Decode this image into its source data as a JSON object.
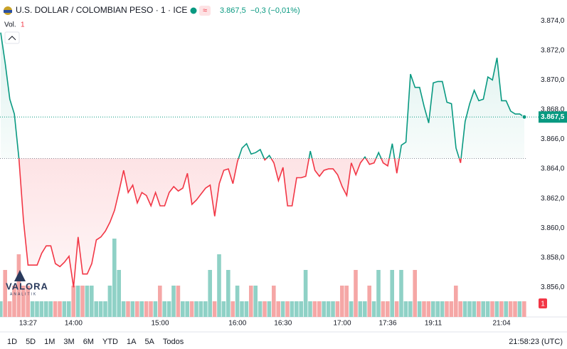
{
  "chart_data": {
    "type": "baseline",
    "title": "U.S. DOLLAR / COLOMBIAN PESO · 1 · ICE",
    "header": {
      "price": "3.867,5",
      "change": "−0,3 (−0,01%)"
    },
    "volume_title": "Vol.",
    "watermark": {
      "name": "VALORA",
      "sub": "ANALITIK"
    },
    "categories": [
      null,
      null,
      null,
      null,
      null,
      null,
      "13:27",
      null,
      null,
      null,
      null,
      null,
      null,
      null,
      null,
      null,
      "14:00",
      null,
      null,
      null,
      null,
      null,
      null,
      null,
      null,
      null,
      null,
      null,
      null,
      null,
      null,
      null,
      null,
      null,
      null,
      "15:00",
      null,
      null,
      null,
      null,
      null,
      null,
      null,
      null,
      null,
      null,
      null,
      null,
      null,
      null,
      null,
      null,
      "16:00",
      null,
      null,
      null,
      null,
      null,
      null,
      null,
      null,
      null,
      "16:30",
      null,
      null,
      null,
      null,
      null,
      null,
      null,
      null,
      null,
      null,
      null,
      null,
      "17:00",
      null,
      null,
      null,
      null,
      null,
      null,
      null,
      null,
      null,
      "17:36",
      null,
      null,
      null,
      null,
      null,
      null,
      null,
      null,
      null,
      "19:11",
      null,
      null,
      null,
      null,
      null,
      null,
      null,
      null,
      null,
      null,
      null,
      null,
      null,
      null,
      "21:04",
      null,
      null,
      null,
      null,
      null
    ],
    "series": [
      {
        "name": "USD/COP",
        "up_color": "#089981",
        "down_color": "#f23645",
        "values": [
          3873.2,
          3871.1,
          3868.7,
          3867.7,
          3864.7,
          3860.5,
          3857.5,
          3857.5,
          3857.5,
          3858.3,
          3858.8,
          3858.8,
          3857.6,
          3857.4,
          3857.7,
          3858.1,
          3856.0,
          3859.4,
          3856.9,
          3856.9,
          3857.6,
          3859.2,
          3859.4,
          3859.8,
          3860.4,
          3861.2,
          3862.5,
          3863.9,
          3862.4,
          3862.9,
          3861.7,
          3862.4,
          3862.2,
          3861.5,
          3862.4,
          3861.5,
          3861.5,
          3862.4,
          3862.8,
          3862.5,
          3862.7,
          3863.7,
          3861.6,
          3861.9,
          3862.3,
          3862.7,
          3862.9,
          3860.8,
          3863.0,
          3863.9,
          3864.0,
          3863.0,
          3864.5,
          3865.4,
          3865.7,
          3865.0,
          3865.1,
          3865.3,
          3864.6,
          3864.9,
          3864.4,
          3863.2,
          3864.1,
          3861.5,
          3861.5,
          3863.4,
          3863.4,
          3863.5,
          3865.2,
          3863.9,
          3863.5,
          3863.9,
          3864.0,
          3864.0,
          3863.6,
          3862.8,
          3862.2,
          3864.4,
          3863.6,
          3864.4,
          3864.8,
          3864.3,
          3864.4,
          3865.1,
          3864.4,
          3864.2,
          3865.7,
          3863.7,
          3865.6,
          3865.8,
          3870.4,
          3869.5,
          3869.5,
          3868.2,
          3867.1,
          3869.8,
          3869.9,
          3869.9,
          3868.5,
          3868.4,
          3865.4,
          3864.4,
          3867.2,
          3868.4,
          3869.3,
          3868.6,
          3868.7,
          3870.2,
          3870.0,
          3871.5,
          3868.6,
          3868.6,
          3867.9,
          3867.7,
          3867.7,
          3867.5
        ]
      }
    ],
    "baseline": 3864.7,
    "volume": {
      "up_color": "#8fd1c6",
      "down_color": "#f5a7a6",
      "label_color": "#f23645",
      "values": [
        1,
        3,
        1,
        2,
        4,
        2,
        2,
        1,
        1,
        1,
        1,
        1,
        1,
        1,
        1,
        1,
        2,
        2,
        2,
        2,
        2,
        1,
        1,
        1,
        2,
        5,
        3,
        1,
        1,
        1,
        1,
        1,
        1,
        1,
        1,
        2,
        1,
        1,
        2,
        2,
        1,
        1,
        1,
        1,
        1,
        1,
        3,
        1,
        4,
        1,
        3,
        1,
        2,
        1,
        1,
        2,
        2,
        1,
        1,
        1,
        2,
        1,
        1,
        1,
        1,
        1,
        1,
        3,
        1,
        1,
        1,
        1,
        1,
        1,
        1,
        2,
        2,
        1,
        3,
        1,
        1,
        2,
        1,
        3,
        1,
        1,
        3,
        1,
        3,
        1,
        1,
        3,
        1,
        1,
        1,
        1,
        1,
        1,
        1,
        1,
        2,
        1,
        1,
        1,
        1,
        1,
        1,
        1,
        1,
        1,
        1,
        1,
        1,
        1,
        1,
        1
      ]
    },
    "ylim": [
      3854,
      3875.4
    ],
    "yticks": [
      {
        "value": 3874,
        "label": "3.874,0"
      },
      {
        "value": 3872,
        "label": "3.872,0"
      },
      {
        "value": 3870,
        "label": "3.870,0"
      },
      {
        "value": 3868,
        "label": "3.868,0"
      },
      {
        "value": 3866,
        "label": "3.866,0"
      },
      {
        "value": 3864,
        "label": "3.864,0"
      },
      {
        "value": 3862,
        "label": "3.862,0"
      },
      {
        "value": 3860,
        "label": "3.860,0"
      },
      {
        "value": 3858,
        "label": "3.858,0"
      },
      {
        "value": 3856,
        "label": "3.856,0"
      }
    ],
    "grid": false
  },
  "toolbar": {
    "ranges": [
      "1D",
      "5D",
      "1M",
      "3M",
      "6M",
      "YTD",
      "1A",
      "5A",
      "Todos"
    ],
    "clock": "21:58:23 (UTC)"
  }
}
